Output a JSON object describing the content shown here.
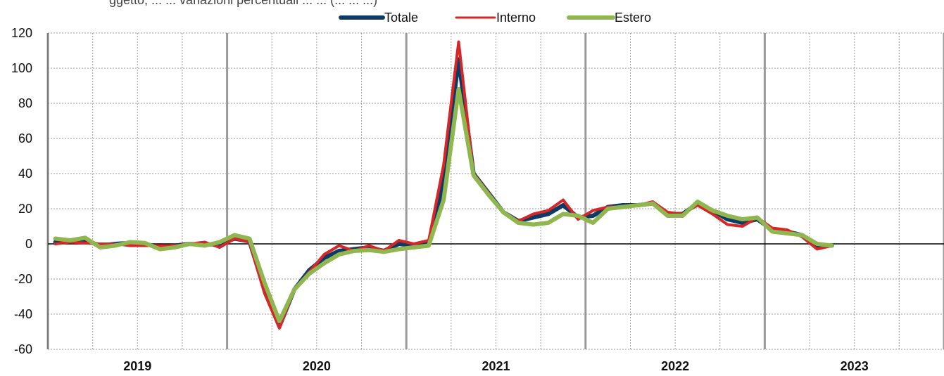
{
  "subtitle": "ggetto, ... ... variazioni percentuali ... ... (... ... ...)",
  "chart_data": {
    "type": "line",
    "x_start": "2019-01",
    "x_end": "2023-12",
    "x_frequency": "monthly",
    "ylim": [
      -60,
      120
    ],
    "yticks": [
      -60,
      -40,
      -20,
      0,
      20,
      40,
      60,
      80,
      100,
      120
    ],
    "year_labels": [
      "2019",
      "2020",
      "2021",
      "2022",
      "2023"
    ],
    "grid": true,
    "legend_position": "top",
    "series": [
      {
        "name": "Totale",
        "color": "#0d3b66",
        "values": [
          1,
          1.5,
          2,
          -1,
          0,
          0.5,
          0,
          -2,
          -1,
          0,
          -0.5,
          0,
          3,
          1.5,
          -26,
          -47,
          -26,
          -15,
          -8,
          -4,
          -3,
          -2,
          -4,
          0,
          -1,
          0,
          35,
          105,
          40,
          29,
          18,
          13,
          15,
          17,
          22,
          15,
          16,
          21,
          22,
          22,
          23,
          17,
          17,
          23,
          19,
          14,
          12,
          14,
          8,
          7,
          5,
          -1,
          -1
        ]
      },
      {
        "name": "Interno",
        "color": "#d62728",
        "values": [
          0,
          1,
          0.5,
          0,
          0,
          -1,
          -1,
          -1,
          -1,
          0,
          1,
          -2,
          3,
          1,
          -28,
          -48,
          -26,
          -16,
          -6,
          -1,
          -4,
          -1,
          -4,
          2,
          0,
          2,
          45,
          115,
          40,
          29,
          18,
          13,
          17,
          19,
          25,
          14,
          19,
          21,
          21,
          22,
          24,
          18,
          17,
          22,
          17,
          11,
          10,
          15,
          9,
          8,
          4,
          -3,
          -1
        ]
      },
      {
        "name": "Estero",
        "color": "#8fb64f",
        "values": [
          3,
          2,
          3.5,
          -2,
          -1,
          1,
          0.5,
          -3,
          -2,
          0,
          -1,
          1,
          5,
          3,
          -22,
          -44,
          -26,
          -17,
          -11,
          -6,
          -4,
          -3.5,
          -4.5,
          -3,
          -2,
          -1,
          25,
          88,
          39,
          28,
          18,
          12,
          11,
          12,
          17,
          16,
          12,
          20,
          21,
          22,
          23,
          16,
          16,
          24,
          19,
          16,
          14,
          15,
          7,
          6,
          5,
          0,
          -1
        ]
      }
    ]
  }
}
